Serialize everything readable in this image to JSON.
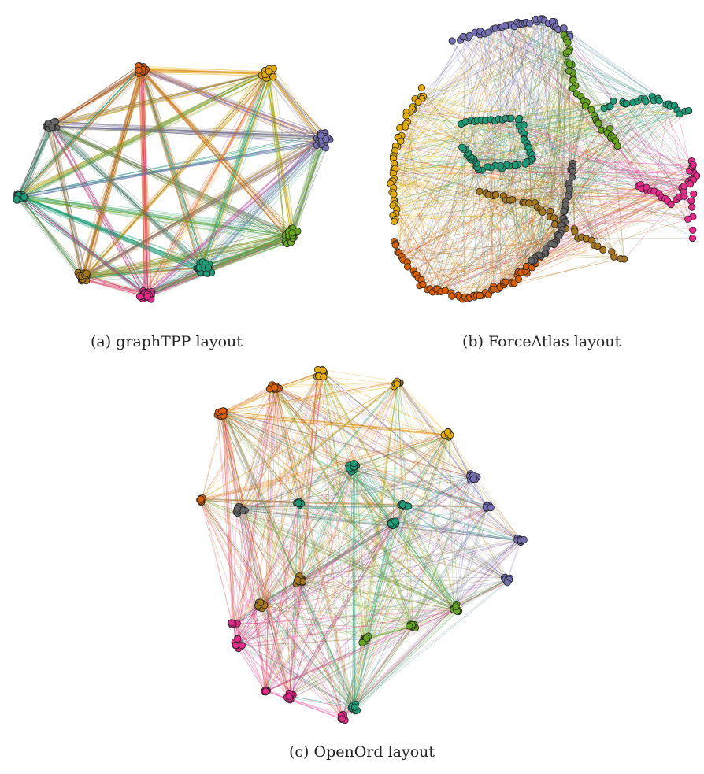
{
  "figure": {
    "panels": [
      {
        "id": "a",
        "caption": "(a) graphTPP layout"
      },
      {
        "id": "b",
        "caption": "(b) ForceAtlas layout"
      },
      {
        "id": "c",
        "caption": "(c) OpenOrd layout"
      }
    ]
  },
  "palette": {
    "orange": "#d95f02",
    "yellow": "#e6ab02",
    "purple": "#7570b3",
    "lime": "#66a61e",
    "teal": "#1b9e77",
    "magenta": "#e7298a",
    "brown": "#a6761d",
    "gray": "#666666"
  },
  "node_stroke": "#222222",
  "communities": [
    "orange",
    "yellow",
    "purple",
    "lime",
    "teal",
    "magenta",
    "brown",
    "gray"
  ]
}
